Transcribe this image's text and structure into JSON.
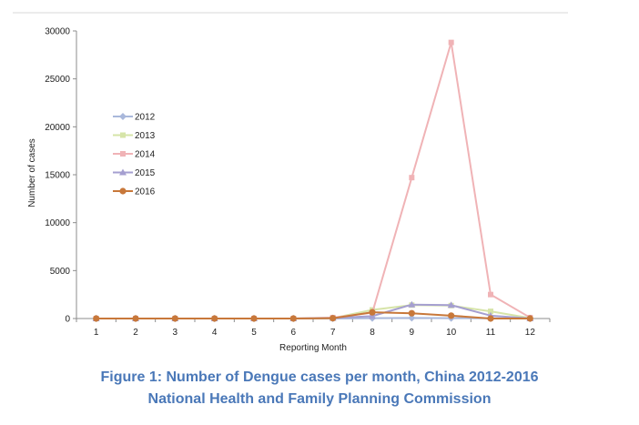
{
  "figure": {
    "caption_line1": "Figure 1: Number of Dengue cases per month, China 2012-2016",
    "caption_line2": "National Health and Family Planning Commission"
  },
  "chart_data": {
    "type": "line",
    "title": "",
    "xlabel": "Reporting Month",
    "ylabel": "Number of cases",
    "categories": [
      "1",
      "2",
      "3",
      "4",
      "5",
      "6",
      "7",
      "8",
      "9",
      "10",
      "11",
      "12"
    ],
    "ylim": [
      0,
      30000
    ],
    "yticks": [
      0,
      5000,
      10000,
      15000,
      20000,
      25000,
      30000
    ],
    "grid": false,
    "legend_position": "left",
    "series": [
      {
        "name": "2012",
        "color": "#a9b8db",
        "marker": "diamond",
        "values": [
          0,
          0,
          0,
          0,
          0,
          0,
          0,
          40,
          60,
          40,
          20,
          5
        ]
      },
      {
        "name": "2013",
        "color": "#d6e4a8",
        "marker": "square",
        "values": [
          0,
          0,
          0,
          0,
          0,
          0,
          40,
          900,
          1400,
          1350,
          750,
          50
        ]
      },
      {
        "name": "2014",
        "color": "#f0b3b6",
        "marker": "square",
        "values": [
          0,
          0,
          0,
          0,
          0,
          0,
          100,
          600,
          14700,
          28800,
          2500,
          100
        ]
      },
      {
        "name": "2015",
        "color": "#a59fd0",
        "marker": "triangle",
        "values": [
          0,
          0,
          0,
          0,
          0,
          0,
          50,
          250,
          1450,
          1400,
          300,
          10
        ]
      },
      {
        "name": "2016",
        "color": "#c8783a",
        "marker": "circle",
        "values": [
          0,
          0,
          0,
          0,
          0,
          0,
          30,
          650,
          550,
          300,
          0,
          0
        ]
      }
    ]
  }
}
